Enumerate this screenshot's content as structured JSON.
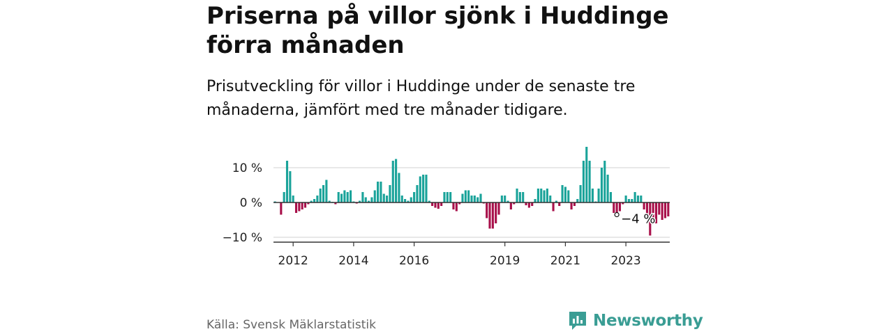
{
  "header": {
    "title": "Priserna på villor sjönk i Huddinge förra månaden",
    "subtitle": "Prisutveckling för villor i Huddinge under de senaste tre månaderna, jämfört med tre månader tidigare."
  },
  "footer": {
    "source": "Källa: Svensk Mäklarstatistik",
    "brand": "Newsworthy"
  },
  "colors": {
    "positive": "#1aa39a",
    "negative": "#a8104a",
    "axis": "#333333",
    "grid": "#d9d9d9",
    "brand": "#3a9d94"
  },
  "icons": {
    "brand_logo": "chart-bubble-icon"
  },
  "chart_data": {
    "type": "bar",
    "title": "",
    "xlabel": "",
    "ylabel": "",
    "ylim": [
      -11,
      16
    ],
    "yticks": [
      {
        "value": 10,
        "label": "10 %"
      },
      {
        "value": 0,
        "label": "0 %"
      },
      {
        "value": -10,
        "label": "−10 %"
      }
    ],
    "xticks": [
      {
        "index": 6,
        "label": "2012"
      },
      {
        "index": 26,
        "label": "2014"
      },
      {
        "index": 46,
        "label": "2016"
      },
      {
        "index": 76,
        "label": "2019"
      },
      {
        "index": 96,
        "label": "2021"
      },
      {
        "index": 116,
        "label": "2023"
      }
    ],
    "grid": true,
    "annotation": {
      "index": 113,
      "label": "−4 %"
    },
    "values": [
      0.3,
      0.1,
      -3.5,
      3,
      12,
      9,
      2,
      -3,
      -2.5,
      -2,
      -1.5,
      -0.5,
      0.5,
      1,
      2,
      4,
      5,
      6.5,
      0.5,
      0.2,
      -0.5,
      3,
      2.5,
      3.5,
      3,
      3.5,
      0.3,
      -0.3,
      0.5,
      3,
      1.5,
      0.5,
      1.5,
      3.5,
      6,
      6,
      2.5,
      2,
      5,
      12,
      12.5,
      8.5,
      2,
      1,
      0.5,
      1.5,
      3,
      5,
      7.5,
      8,
      8,
      0.5,
      -1,
      -1.5,
      -1.8,
      -1,
      3,
      3,
      3,
      -2,
      -2.5,
      -0.5,
      2.5,
      3.5,
      3.5,
      2,
      2,
      1.5,
      2.5,
      -0.3,
      -4.5,
      -7.5,
      -7.5,
      -6,
      -3.5,
      2,
      2,
      0.5,
      -2,
      -0.5,
      4,
      3,
      3,
      -0.8,
      -1.5,
      -1,
      1,
      4,
      4,
      3.5,
      4,
      2,
      -2.5,
      0.5,
      -1,
      5,
      4.5,
      3.5,
      -2,
      -1,
      1,
      5,
      12,
      16,
      12,
      4,
      0.3,
      4,
      10,
      12,
      8,
      3,
      -3,
      -3.5,
      -2.5,
      -0.5,
      2,
      1,
      1,
      3,
      2,
      2,
      -2,
      -4,
      -9.5,
      -6,
      -6,
      -3.5,
      -5,
      -4.5,
      -4
    ]
  }
}
